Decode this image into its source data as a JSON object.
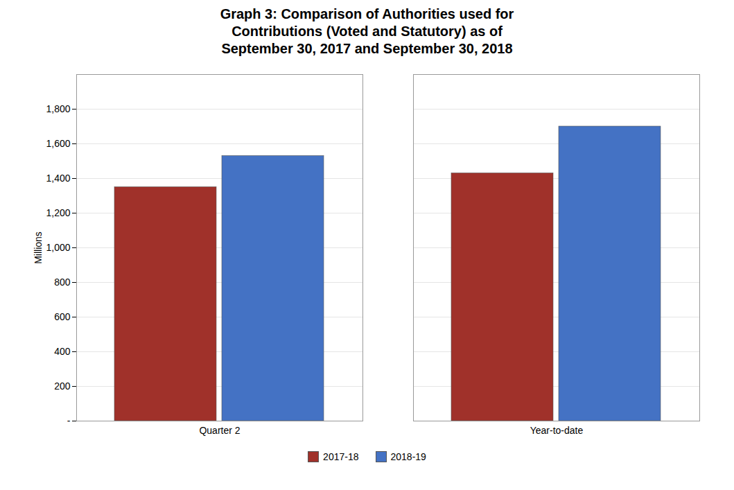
{
  "chart_data": {
    "type": "bar",
    "title": "Graph 3: Comparison of Authorities used for\nContributions (Voted and Statutory) as of\nSeptember 30, 2017 and September 30, 2018",
    "categories": [
      "Quarter 2",
      "Year-to-date"
    ],
    "series": [
      {
        "name": "2017-18",
        "color": "#A0312A",
        "values": [
          1350,
          1430
        ]
      },
      {
        "name": "2018-19",
        "color": "#4472C4",
        "values": [
          1530,
          1700
        ]
      }
    ],
    "ylabel": "Millions",
    "ylim": [
      0,
      2000
    ],
    "yticks": [
      {
        "value": 0,
        "label": "-"
      },
      200,
      400,
      600,
      800,
      {
        "value": 1000,
        "label": "1,000"
      },
      {
        "value": 1200,
        "label": "1,200"
      },
      {
        "value": 1400,
        "label": "1,400"
      },
      {
        "value": 1600,
        "label": "1,600"
      },
      {
        "value": 1800,
        "label": "1,800"
      }
    ],
    "grid": true,
    "legend": "bottom"
  }
}
